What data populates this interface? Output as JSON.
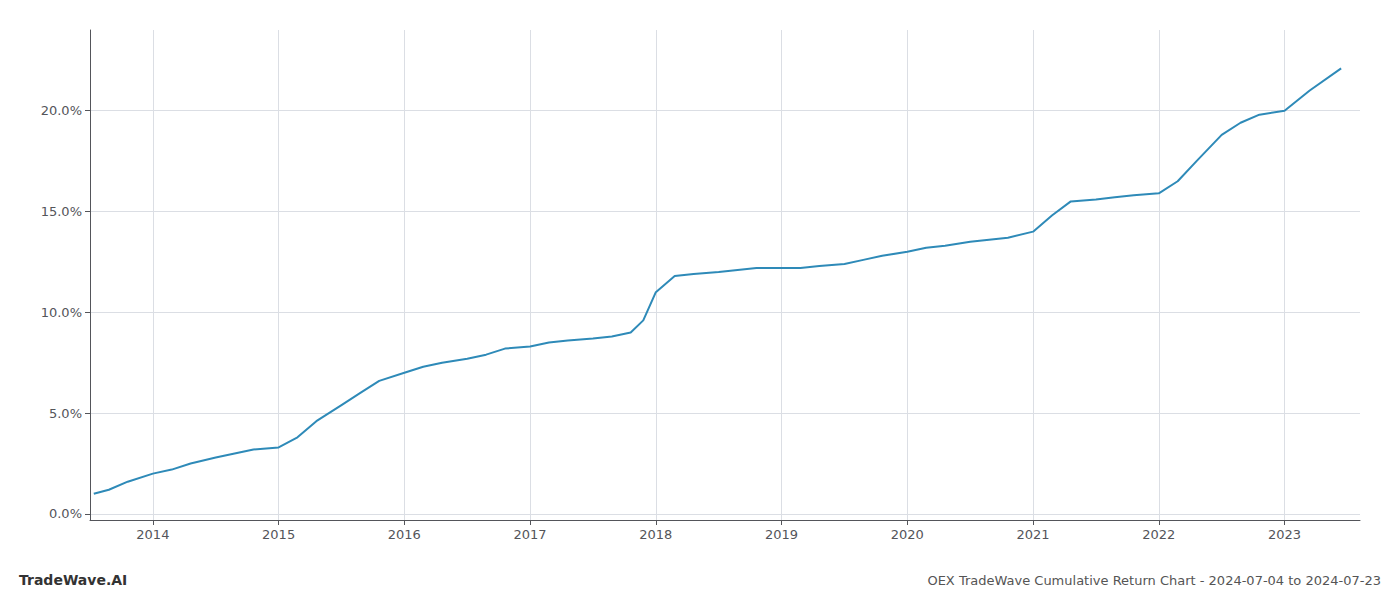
{
  "chart_data": {
    "type": "line",
    "title": "OEX TradeWave Cumulative Return Chart - 2024-07-04 to 2024-07-23",
    "annotations": [
      "TradeWave.AI"
    ],
    "color": "#2e8ab8",
    "grid": true,
    "x": [
      2013.53,
      2013.65,
      2013.8,
      2014.0,
      2014.15,
      2014.3,
      2014.5,
      2014.65,
      2014.8,
      2015.0,
      2015.15,
      2015.3,
      2015.5,
      2015.65,
      2015.8,
      2016.0,
      2016.15,
      2016.3,
      2016.5,
      2016.65,
      2016.8,
      2017.0,
      2017.15,
      2017.3,
      2017.5,
      2017.65,
      2017.8,
      2017.9,
      2018.0,
      2018.15,
      2018.3,
      2018.5,
      2018.65,
      2018.8,
      2019.0,
      2019.15,
      2019.3,
      2019.5,
      2019.65,
      2019.8,
      2020.0,
      2020.15,
      2020.3,
      2020.5,
      2020.65,
      2020.8,
      2021.0,
      2021.15,
      2021.3,
      2021.5,
      2021.65,
      2021.8,
      2022.0,
      2022.15,
      2022.3,
      2022.5,
      2022.65,
      2022.8,
      2023.0,
      2023.2,
      2023.45
    ],
    "values": [
      0.01,
      0.012,
      0.016,
      0.02,
      0.022,
      0.025,
      0.028,
      0.03,
      0.032,
      0.033,
      0.038,
      0.046,
      0.054,
      0.06,
      0.066,
      0.07,
      0.073,
      0.075,
      0.077,
      0.079,
      0.082,
      0.083,
      0.085,
      0.086,
      0.087,
      0.088,
      0.09,
      0.096,
      0.11,
      0.118,
      0.119,
      0.12,
      0.121,
      0.122,
      0.122,
      0.122,
      0.123,
      0.124,
      0.126,
      0.128,
      0.13,
      0.132,
      0.133,
      0.135,
      0.136,
      0.137,
      0.14,
      0.148,
      0.155,
      0.156,
      0.157,
      0.158,
      0.159,
      0.165,
      0.175,
      0.188,
      0.194,
      0.198,
      0.2,
      0.21,
      0.221
    ],
    "xlim": [
      2013.5,
      2023.6
    ],
    "xticks": [
      2014,
      2015,
      2016,
      2017,
      2018,
      2019,
      2020,
      2021,
      2022,
      2023
    ],
    "ylim": [
      -0.003,
      0.24
    ],
    "yticks": [
      {
        "value": 0.0,
        "label": "0.0%"
      },
      {
        "value": 0.05,
        "label": "5.0%"
      },
      {
        "value": 0.1,
        "label": "10.0%"
      },
      {
        "value": 0.15,
        "label": "15.0%"
      },
      {
        "value": 0.2,
        "label": "20.0%"
      }
    ]
  }
}
